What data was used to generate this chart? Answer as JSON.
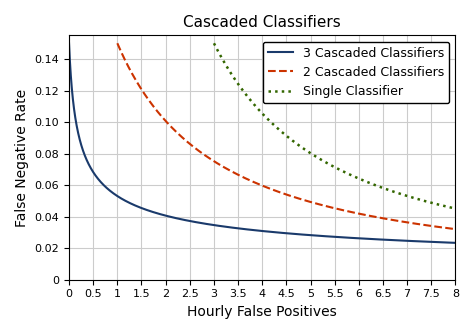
{
  "title": "Cascaded Classifiers",
  "xlabel": "Hourly False Positives",
  "ylabel": "False Negative Rate",
  "xlim": [
    0,
    8
  ],
  "ylim": [
    0,
    0.155
  ],
  "xticks": [
    0,
    0.5,
    1.0,
    1.5,
    2.0,
    2.5,
    3.0,
    3.5,
    4.0,
    4.5,
    5.0,
    5.5,
    6.0,
    6.5,
    7.0,
    7.5,
    8.0
  ],
  "yticks": [
    0,
    0.02,
    0.04,
    0.06,
    0.08,
    0.1,
    0.12,
    0.14
  ],
  "lines": [
    {
      "label": "3 Cascaded Classifiers",
      "color": "#1a3a6b",
      "linestyle": "-",
      "linewidth": 1.5,
      "x_offset": 0.0,
      "A": 0.0345,
      "B": 0.23,
      "C": 1.5
    },
    {
      "label": "2 Cascaded Classifiers",
      "color": "#cc3300",
      "linestyle": "--",
      "linewidth": 1.5,
      "x_offset": 1.0,
      "A": 0.165,
      "B": 0.1,
      "C": 1.5
    },
    {
      "label": "Single Classifier",
      "color": "#336600",
      "linestyle": ":",
      "linewidth": 1.8,
      "x_offset": 3.0,
      "A": 0.45,
      "B": 0.0,
      "C": 1.5
    }
  ],
  "legend_loc": "upper right",
  "legend_fontsize": 9,
  "title_fontsize": 11,
  "axis_label_fontsize": 10,
  "tick_fontsize": 8,
  "background_color": "#ffffff",
  "grid": true,
  "grid_color": "#cccccc",
  "grid_linewidth": 0.8
}
